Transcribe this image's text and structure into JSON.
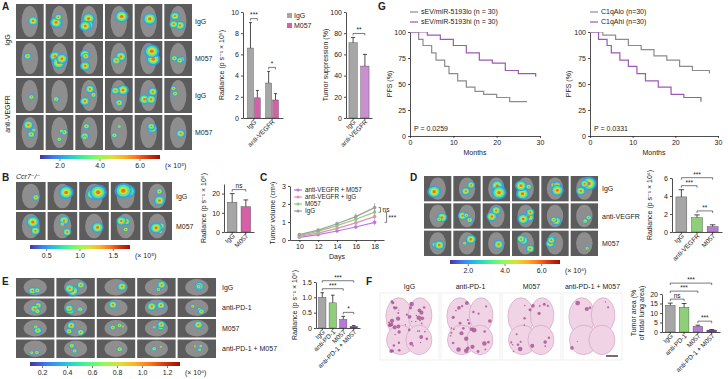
{
  "panel_labels": [
    "A",
    "B",
    "C",
    "D",
    "E",
    "F",
    "G"
  ],
  "chart_data": [
    {
      "type": "bar",
      "ylabel": "Radiance (p s⁻¹ × 10⁵)",
      "categories": [
        "IgG",
        "anti-VEGFR"
      ],
      "series": [
        {
          "name": "IgG",
          "color": "#a6a6a6",
          "values": [
            6.6,
            3.3
          ],
          "errors": [
            2.4,
            1.1
          ]
        },
        {
          "name": "M057",
          "color": "#d65fa8",
          "values": [
            1.9,
            1.7
          ],
          "errors": [
            0.7,
            0.6
          ]
        }
      ],
      "ylim": [
        0,
        10
      ],
      "yticks": [
        0,
        2,
        4,
        6,
        8,
        10
      ],
      "legend": "top-right",
      "annotations": [
        {
          "text": "***",
          "groups": [
            "IgG"
          ]
        },
        {
          "text": "*",
          "groups": [
            "anti-VEGFR"
          ]
        }
      ]
    },
    {
      "type": "bar",
      "ylabel": "Tumor suppression (%)",
      "categories": [
        "IgG",
        "anti-VEGFR"
      ],
      "values": [
        71,
        49
      ],
      "errors": [
        5,
        11
      ],
      "colors": [
        "#a6a6a6",
        "#c98fd0"
      ],
      "ylim": [
        0,
        100
      ],
      "yticks": [
        0,
        20,
        40,
        60,
        80,
        100
      ],
      "annotations": [
        {
          "text": "**",
          "groups": [
            "IgG",
            "anti-VEGFR"
          ]
        }
      ]
    },
    {
      "type": "bar",
      "ylabel": "Radiance (p s⁻¹ × 10⁵)",
      "categories": [
        "IgG",
        "M057"
      ],
      "values": [
        15.5,
        13.2
      ],
      "errors": [
        4.5,
        3.5
      ],
      "colors": [
        "#a6a6a6",
        "#d65fa8"
      ],
      "ylim": [
        0,
        25
      ],
      "yticks": [
        0,
        10,
        20
      ],
      "annotations": [
        {
          "text": "ns",
          "groups": [
            "IgG",
            "M057"
          ]
        }
      ]
    },
    {
      "type": "line",
      "xlabel": "Days",
      "ylabel": "Tumor volume (cm³)",
      "x": [
        10,
        12,
        14,
        16,
        18
      ],
      "series": [
        {
          "name": "anti-VEGFR + M057",
          "color": "#b57cd6",
          "values": [
            0.15,
            0.3,
            0.5,
            0.72,
            0.98
          ],
          "errors": [
            0.03,
            0.05,
            0.07,
            0.1,
            0.14
          ]
        },
        {
          "name": "anti-VEGFR + IgG",
          "color": "#e58fc0",
          "values": [
            0.2,
            0.38,
            0.65,
            0.95,
            1.3
          ],
          "errors": [
            0.04,
            0.06,
            0.09,
            0.13,
            0.18
          ]
        },
        {
          "name": "M057",
          "color": "#8fcf7a",
          "values": [
            0.25,
            0.48,
            0.8,
            1.15,
            1.55
          ],
          "errors": [
            0.04,
            0.07,
            0.1,
            0.15,
            0.2
          ]
        },
        {
          "name": "IgG",
          "color": "#9e9e9e",
          "values": [
            0.3,
            0.55,
            0.9,
            1.3,
            1.8
          ],
          "errors": [
            0.05,
            0.08,
            0.12,
            0.18,
            0.25
          ]
        }
      ],
      "xlim": [
        9,
        19
      ],
      "xticks": [
        10,
        12,
        14,
        16,
        18
      ],
      "ylim": [
        0,
        3
      ],
      "yticks": [
        0,
        1,
        2,
        3
      ],
      "legend": "top-left",
      "marker": "circle",
      "annotations": [
        {
          "text": "ns",
          "series": [
            "IgG",
            "M057"
          ]
        },
        {
          "text": "***",
          "series": [
            "M057",
            "anti-VEGFR + M057"
          ]
        }
      ]
    },
    {
      "type": "bar",
      "ylabel": "Radiance (p s⁻¹ × 10⁶)",
      "categories": [
        "IgG",
        "anti-VEGFR",
        "M057"
      ],
      "values": [
        3.9,
        1.6,
        0.6
      ],
      "errors": [
        0.8,
        0.3,
        0.2
      ],
      "colors": [
        "#a6a6a6",
        "#8fcf7a",
        "#b57cd6"
      ],
      "ylim": [
        0,
        6
      ],
      "yticks": [
        0,
        2,
        4,
        6
      ],
      "annotations": [
        {
          "text": "***",
          "groups": [
            "IgG",
            "anti-VEGFR"
          ]
        },
        {
          "text": "**",
          "groups": [
            "anti-VEGFR",
            "M057"
          ]
        },
        {
          "text": "***",
          "groups": [
            "IgG",
            "M057"
          ]
        }
      ]
    },
    {
      "type": "bar",
      "ylabel": "Radiance (p s⁻¹ × 10⁶)",
      "categories": [
        "IgG",
        "anti-PD-1",
        "M057",
        "anti-PD-1 + M057"
      ],
      "values": [
        1.0,
        0.82,
        0.28,
        0.05
      ],
      "errors": [
        0.15,
        0.25,
        0.1,
        0.03
      ],
      "colors": [
        "#a6a6a6",
        "#8fcf7a",
        "#b57cd6",
        "#7b3fa0"
      ],
      "ylim": [
        0,
        1.5
      ],
      "yticks": [
        0,
        0.5,
        {
          "value": 1,
          "label": "1.0"
        },
        1.5
      ],
      "annotations": [
        {
          "text": "***",
          "groups": [
            "IgG",
            "M057"
          ]
        },
        {
          "text": "*",
          "groups": [
            "M057",
            "anti-PD-1 + M057"
          ]
        },
        {
          "text": "***",
          "groups": [
            "IgG",
            "anti-PD-1 + M057"
          ]
        }
      ]
    },
    {
      "type": "bar",
      "ylabel": [
        "Tumor area (%",
        "of total lung area)"
      ],
      "categories": [
        "IgG",
        "anti-PD-1",
        "M057",
        "anti-PD-1 + M057"
      ],
      "values": [
        14,
        13,
        3,
        1
      ],
      "errors": [
        1.2,
        2,
        0.6,
        0.3
      ],
      "colors": [
        "#a6a6a6",
        "#8fcf7a",
        "#b57cd6",
        "#7b3fa0"
      ],
      "ylim": [
        0,
        20
      ],
      "yticks": [
        0,
        5,
        10,
        15,
        20
      ],
      "annotations": [
        {
          "text": "ns",
          "groups": [
            "IgG",
            "anti-PD-1"
          ]
        },
        {
          "text": "***",
          "groups": [
            "M057",
            "anti-PD-1 + M057"
          ]
        },
        {
          "text": "***",
          "groups": [
            "IgG",
            "M057"
          ]
        },
        {
          "text": "***",
          "groups": [
            "IgG",
            "anti-PD-1 + M057"
          ]
        }
      ]
    },
    {
      "type": "step",
      "xlabel": "Months",
      "ylabel": "PFS (%)",
      "series": [
        {
          "name": "sEV/miR-5193lo (n = 30)",
          "color": "#8c8c8c",
          "x": [
            0,
            2,
            3,
            5,
            6,
            8,
            9,
            11,
            13,
            15,
            17,
            20,
            23,
            27
          ],
          "values": [
            100,
            93,
            87,
            80,
            73,
            67,
            60,
            53,
            47,
            43,
            40,
            37,
            33,
            33
          ]
        },
        {
          "name": "sEV/miR-5193hi (n = 30)",
          "color": "#9b59b6",
          "x": [
            0,
            4,
            7,
            10,
            13,
            16,
            19,
            22,
            25,
            29
          ],
          "values": [
            100,
            97,
            93,
            87,
            80,
            73,
            70,
            63,
            60,
            57
          ]
        }
      ],
      "xlim": [
        0,
        30
      ],
      "xticks": [
        0,
        10,
        20,
        30
      ],
      "ylim": [
        0,
        100
      ],
      "yticks": [
        0,
        25,
        50,
        75,
        100
      ],
      "legend": "top",
      "annotations": [
        {
          "text": "P = 0.0259"
        }
      ]
    },
    {
      "type": "step",
      "xlabel": "Months",
      "ylabel": "PFS (%)",
      "series": [
        {
          "name": "C1qAlo (n=30)",
          "color": "#8c8c8c",
          "x": [
            0,
            3,
            6,
            9,
            12,
            15,
            18,
            21,
            24,
            28
          ],
          "values": [
            100,
            97,
            93,
            87,
            83,
            77,
            73,
            67,
            63,
            60
          ]
        },
        {
          "name": "C1qAhi (n=30)",
          "color": "#9b59b6",
          "x": [
            0,
            2,
            4,
            5,
            7,
            9,
            11,
            13,
            16,
            19,
            22,
            26
          ],
          "values": [
            100,
            93,
            87,
            80,
            73,
            67,
            60,
            53,
            47,
            40,
            37,
            33
          ]
        }
      ],
      "xlim": [
        0,
        30
      ],
      "xticks": [
        0,
        10,
        20,
        30
      ],
      "ylim": [
        0,
        100
      ],
      "yticks": [
        0,
        25,
        50,
        75,
        100
      ],
      "legend": "top",
      "annotations": [
        {
          "text": "P = 0.0331"
        }
      ]
    }
  ],
  "image_panels": [
    {
      "row_labels": [
        "IgG",
        "M057",
        "IgG",
        "M057"
      ],
      "group_labels": [
        "IgG",
        "anti-VEGFR"
      ],
      "colorbar": {
        "lim": [
          1,
          7
        ],
        "ticks": [
          {
            "value": 2,
            "label": "2.0"
          },
          {
            "value": 4,
            "label": "4.0"
          },
          {
            "value": 6,
            "label": "6.0"
          }
        ],
        "unit": "(× 10⁵)"
      }
    },
    {
      "title": "Ccr7⁻/⁻",
      "row_labels": [
        "IgG",
        "M057"
      ],
      "colorbar": {
        "lim": [
          0.25,
          1.75
        ],
        "ticks": [
          0.5,
          {
            "value": 1,
            "label": "1.0"
          },
          1.5
        ],
        "unit": "(× 10⁵)"
      }
    },
    {
      "row_labels": [
        "IgG",
        "anti-VEGFR",
        "M057"
      ],
      "colorbar": {
        "lim": [
          1,
          7
        ],
        "ticks": [
          {
            "value": 2,
            "label": "2.0"
          },
          {
            "value": 4,
            "label": "4.0"
          },
          {
            "value": 6,
            "label": "6.0"
          }
        ],
        "unit": "(× 10⁶)"
      }
    },
    {
      "row_labels": [
        "IgG",
        "anti-PD-1",
        "M057",
        "anti-PD-1 + M057"
      ],
      "colorbar": {
        "lim": [
          0.1,
          1.3
        ],
        "ticks": [
          0.2,
          0.4,
          0.6,
          0.8,
          {
            "value": 1,
            "label": "1.0"
          },
          1.2
        ],
        "unit": "(× 10⁶)"
      }
    },
    {
      "column_labels": [
        "IgG",
        "anti-PD-1",
        "M057",
        "anti-PD-1 + M057"
      ]
    }
  ]
}
